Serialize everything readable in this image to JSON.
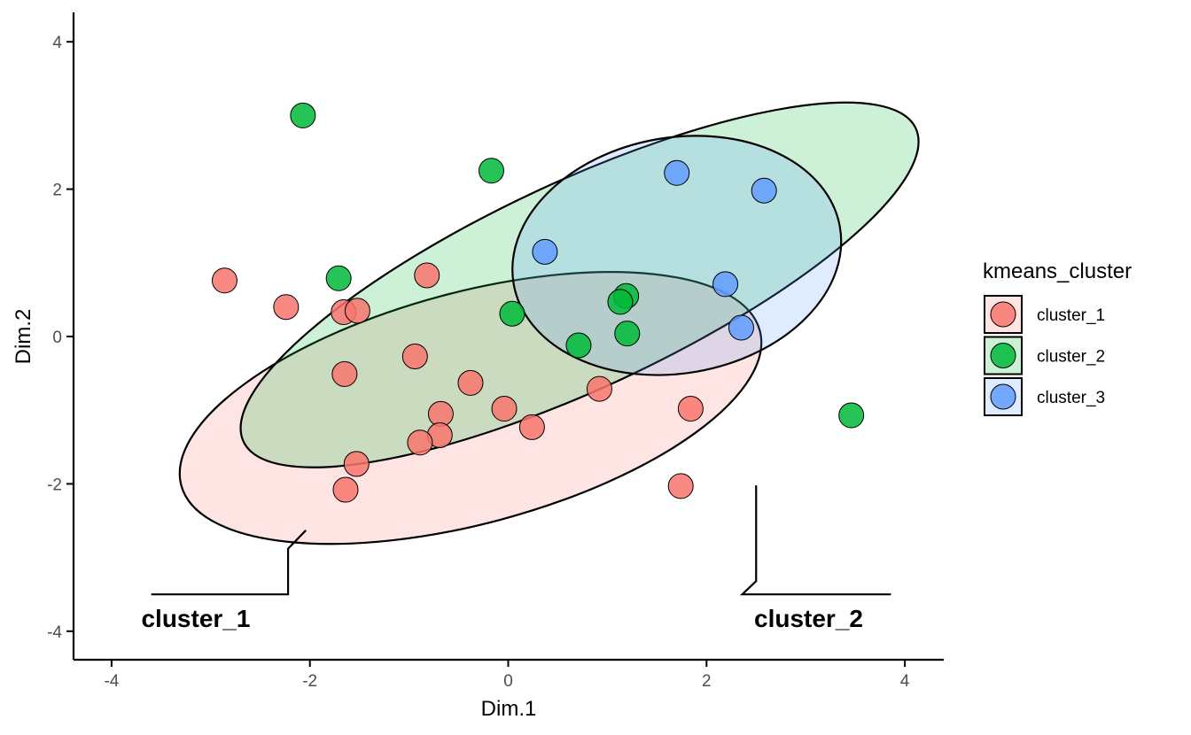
{
  "chart_data": {
    "type": "scatter",
    "xlabel": "Dim.1",
    "ylabel": "Dim.2",
    "xlim": [
      -4.4,
      4.4
    ],
    "ylim": [
      -4.4,
      4.4
    ],
    "x_ticks": [
      -4,
      -2,
      0,
      2,
      4
    ],
    "y_ticks": [
      -4,
      -2,
      0,
      2,
      4
    ],
    "grid": false,
    "legend": {
      "title": "kmeans_cluster",
      "placement": "right",
      "entries": [
        "cluster_1",
        "cluster_2",
        "cluster_3"
      ]
    },
    "series": [
      {
        "name": "cluster_1",
        "color": "#F8766D",
        "points": [
          {
            "x": -2.86,
            "y": 0.76
          },
          {
            "x": -2.24,
            "y": 0.4
          },
          {
            "x": -1.66,
            "y": 0.33
          },
          {
            "x": -1.52,
            "y": 0.35
          },
          {
            "x": -0.82,
            "y": 0.83
          },
          {
            "x": -1.65,
            "y": -0.51
          },
          {
            "x": -0.94,
            "y": -0.27
          },
          {
            "x": -0.38,
            "y": -0.63
          },
          {
            "x": -0.68,
            "y": -1.05
          },
          {
            "x": -0.69,
            "y": -1.34
          },
          {
            "x": -0.89,
            "y": -1.44
          },
          {
            "x": -0.04,
            "y": -0.98
          },
          {
            "x": 0.24,
            "y": -1.23
          },
          {
            "x": -1.53,
            "y": -1.73
          },
          {
            "x": -1.64,
            "y": -2.08
          },
          {
            "x": 0.92,
            "y": -0.71
          },
          {
            "x": 1.84,
            "y": -0.98
          },
          {
            "x": 1.74,
            "y": -2.03
          }
        ]
      },
      {
        "name": "cluster_2",
        "color": "#00BA38",
        "points": [
          {
            "x": -2.07,
            "y": 3.0
          },
          {
            "x": -0.17,
            "y": 2.25
          },
          {
            "x": -1.71,
            "y": 0.79
          },
          {
            "x": 0.04,
            "y": 0.31
          },
          {
            "x": 0.71,
            "y": -0.12
          },
          {
            "x": 1.19,
            "y": 0.55
          },
          {
            "x": 1.13,
            "y": 0.47
          },
          {
            "x": 1.2,
            "y": 0.04
          },
          {
            "x": 3.46,
            "y": -1.07
          }
        ]
      },
      {
        "name": "cluster_3",
        "color": "#619CFF",
        "points": [
          {
            "x": 1.7,
            "y": 2.22
          },
          {
            "x": 2.58,
            "y": 1.98
          },
          {
            "x": 0.37,
            "y": 1.15
          },
          {
            "x": 2.19,
            "y": 0.71
          },
          {
            "x": 2.35,
            "y": 0.12
          }
        ]
      }
    ],
    "ellipses": [
      {
        "name": "cluster_1",
        "color": "#F8766D",
        "cx": -0.38,
        "cy": -0.97,
        "rx": 3.02,
        "ry": 1.57,
        "angle_deg": -15
      },
      {
        "name": "cluster_2",
        "color": "#00BA38",
        "cx": 0.72,
        "cy": 0.7,
        "rx": 3.74,
        "ry": 1.4,
        "angle_deg": -25
      },
      {
        "name": "cluster_3",
        "color": "#619CFF",
        "cx": 1.7,
        "cy": 1.1,
        "rx": 1.67,
        "ry": 1.6,
        "angle_deg": -10
      }
    ],
    "annotations": [
      {
        "label": "cluster_1",
        "label_x": -3.7,
        "label_y": -3.82,
        "path": [
          [
            -3.6,
            -3.5
          ],
          [
            -2.22,
            -3.5
          ],
          [
            -2.22,
            -2.88
          ],
          [
            -2.04,
            -2.63
          ]
        ]
      },
      {
        "label": "cluster_2",
        "label_x": 2.48,
        "label_y": -3.82,
        "path": [
          [
            3.86,
            -3.5
          ],
          [
            2.36,
            -3.5
          ],
          [
            2.5,
            -3.32
          ],
          [
            2.5,
            -2.02
          ]
        ]
      }
    ]
  }
}
